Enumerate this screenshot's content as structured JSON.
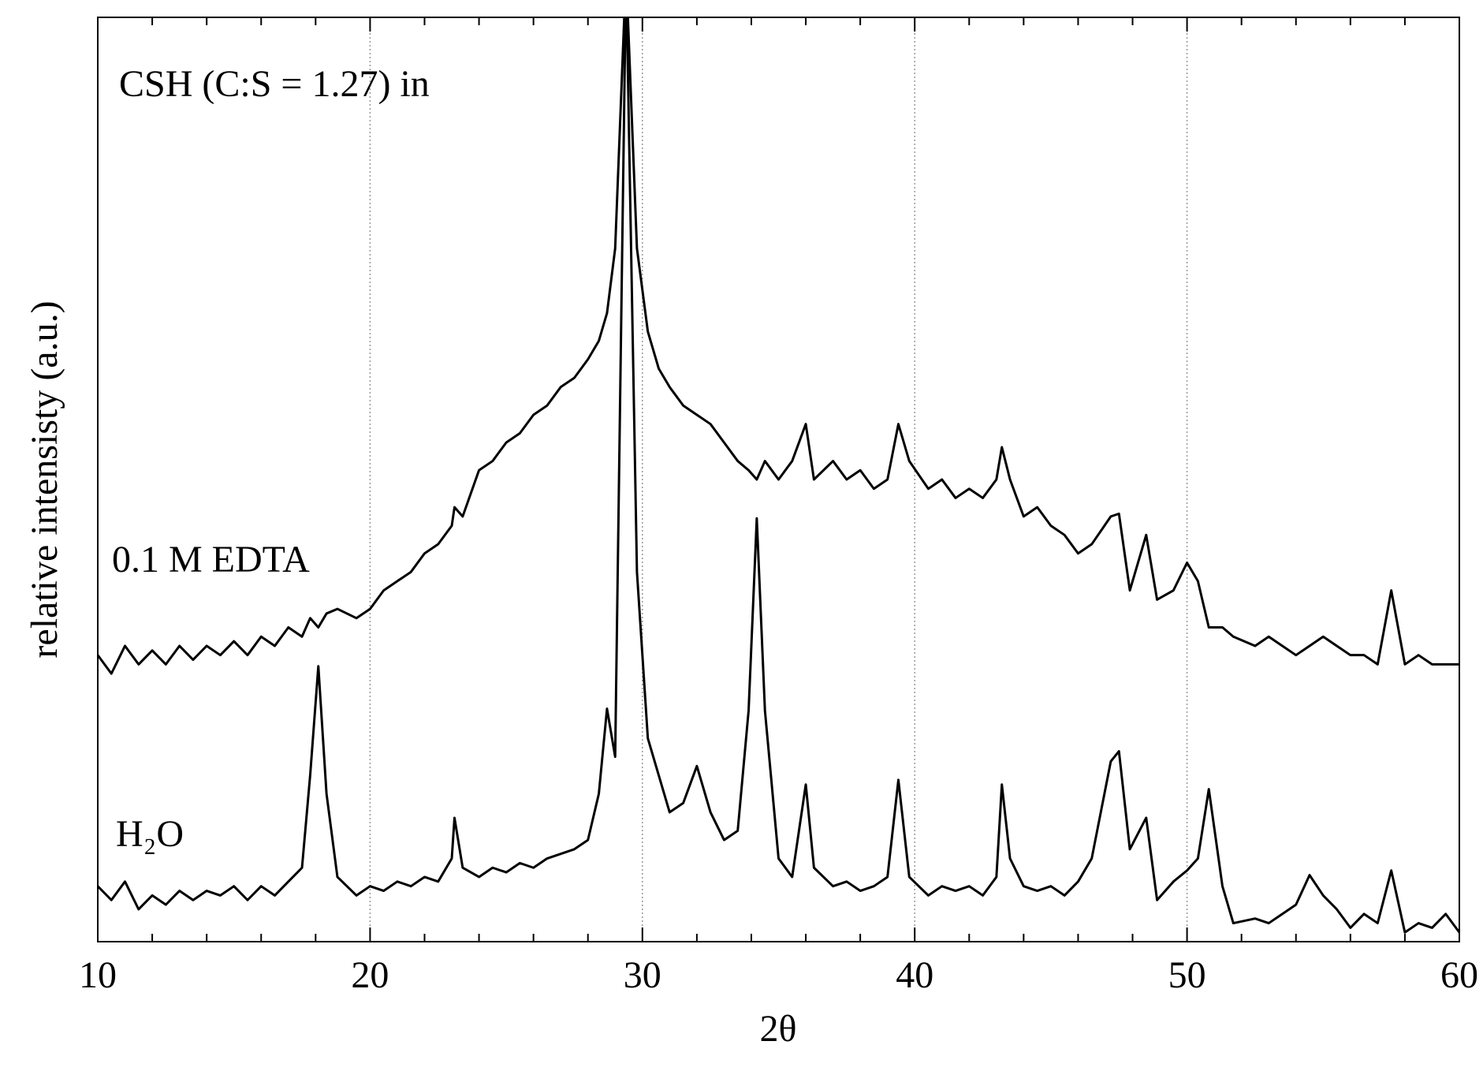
{
  "chart_data": {
    "type": "line",
    "annotation": "CSH (C:S = 1.27) in",
    "xlabel": "2θ",
    "ylabel": "relative intensisty (a.u.)",
    "xlim": [
      10,
      60
    ],
    "xticks": [
      10,
      20,
      30,
      40,
      50,
      60
    ],
    "xminorticks": [
      12,
      14,
      16,
      18,
      22,
      24,
      26,
      28,
      32,
      34,
      36,
      38,
      42,
      44,
      46,
      48,
      52,
      54,
      56,
      58
    ],
    "ylim": [
      0,
      100
    ],
    "grid": true,
    "x": [
      10,
      10.5,
      11,
      11.5,
      12,
      12.5,
      13,
      13.5,
      14,
      14.5,
      15,
      15.5,
      16,
      16.5,
      17,
      17.5,
      17.8,
      18.1,
      18.4,
      18.8,
      19.5,
      20,
      20.5,
      21,
      21.5,
      22,
      22.5,
      23,
      23.1,
      23.4,
      24,
      24.5,
      25,
      25.5,
      26,
      26.5,
      27,
      27.5,
      28,
      28.4,
      28.7,
      29,
      29.4,
      29.8,
      30.2,
      30.6,
      31,
      31.5,
      32,
      32.5,
      33,
      33.5,
      33.9,
      34.2,
      34.5,
      35,
      35.5,
      36,
      36.3,
      37,
      37.5,
      38,
      38.5,
      39,
      39.4,
      39.8,
      40.5,
      41,
      41.5,
      42,
      42.5,
      43,
      43.2,
      43.5,
      44,
      44.5,
      45,
      45.5,
      46,
      46.5,
      47.2,
      47.5,
      47.9,
      48.5,
      48.9,
      49.5,
      50,
      50.4,
      50.8,
      51.3,
      51.7,
      52.5,
      53,
      53.5,
      54,
      54.5,
      55,
      55.5,
      56,
      56.5,
      57,
      57.5,
      58,
      58.5,
      59,
      59.5,
      60
    ],
    "series": [
      {
        "name": "0.1 M EDTA",
        "color": "#000000",
        "values": [
          31,
          29,
          32,
          30,
          31.5,
          30,
          32,
          30.5,
          32,
          31,
          32.5,
          31,
          33,
          32,
          34,
          33,
          35,
          34,
          35.5,
          36,
          35,
          36,
          38,
          39,
          40,
          42,
          43,
          45,
          47,
          46,
          51,
          52,
          54,
          55,
          57,
          58,
          60,
          61,
          63,
          65,
          68,
          75,
          105,
          75,
          66,
          62,
          60,
          58,
          57,
          56,
          54,
          52,
          51,
          50,
          52,
          50,
          52,
          56,
          50,
          52,
          50,
          51,
          49,
          50,
          56,
          52,
          49,
          50,
          48,
          49,
          48,
          50,
          53.5,
          50,
          46,
          47,
          45,
          44,
          42,
          43,
          46,
          46.3,
          38,
          44,
          37,
          38,
          41,
          39,
          34,
          34,
          33,
          32,
          33,
          32,
          31,
          32,
          33,
          32,
          31,
          31,
          30,
          38,
          30,
          31,
          30,
          30,
          30
        ]
      },
      {
        "name": "H₂O",
        "color": "#000000",
        "values": [
          6,
          4.5,
          6.5,
          3.5,
          5,
          4,
          5.5,
          4.5,
          5.5,
          5,
          6,
          4.5,
          6,
          5,
          6.5,
          8,
          18,
          29.8,
          16,
          7,
          5,
          6,
          5.5,
          6.5,
          6,
          7,
          6.5,
          9,
          13.4,
          8,
          7,
          8,
          7.5,
          8.5,
          8,
          9,
          9.5,
          10,
          11,
          16,
          25.2,
          20,
          105,
          40,
          22,
          18,
          14,
          15,
          19,
          14,
          11,
          12,
          25,
          45.8,
          25,
          9,
          7,
          17,
          8,
          6,
          6.5,
          5.5,
          6,
          7,
          17.5,
          7,
          5,
          6,
          5.5,
          6,
          5,
          7,
          17,
          9,
          6,
          5.5,
          6,
          5,
          6.5,
          9,
          19.5,
          20.6,
          10,
          13.4,
          4.5,
          6.5,
          7.7,
          9,
          16.5,
          6,
          2,
          2.5,
          2,
          3,
          4,
          7.2,
          5,
          3.5,
          1.5,
          3,
          2,
          7.7,
          1,
          2,
          1.5,
          3,
          1
        ]
      }
    ]
  }
}
